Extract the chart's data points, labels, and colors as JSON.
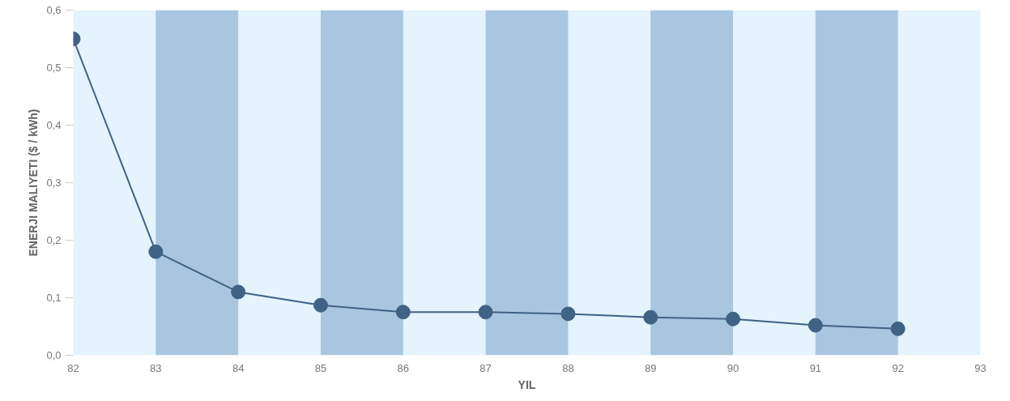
{
  "chart_data": {
    "type": "line",
    "xlabel": "YIL",
    "ylabel": "ENERJI MALIYETI ($ / kWh)",
    "x": [
      82,
      83,
      84,
      85,
      86,
      87,
      88,
      89,
      90,
      91,
      92
    ],
    "series": [
      {
        "color": "#3f6285",
        "values": [
          0.55,
          0.18,
          0.11,
          0.087,
          0.075,
          0.075,
          0.072,
          0.066,
          0.063,
          0.052,
          0.046
        ]
      }
    ],
    "xlim": [
      82,
      93
    ],
    "ylim": [
      0,
      0.6
    ],
    "xticks": [
      82,
      83,
      84,
      85,
      86,
      87,
      88,
      89,
      90,
      91,
      92,
      93
    ],
    "yticks": [
      {
        "value": 0,
        "label": "0,0"
      },
      {
        "value": 0.1,
        "label": "0,1"
      },
      {
        "value": 0.2,
        "label": "0,2"
      },
      {
        "value": 0.3,
        "label": "0,3"
      },
      {
        "value": 0.4,
        "label": "0,4"
      },
      {
        "value": 0.5,
        "label": "0,5"
      },
      {
        "value": 0.6,
        "label": "0,6"
      }
    ],
    "bands": [
      {
        "axis": "x",
        "from": 82,
        "to": 93,
        "color": "#e4f3fc"
      },
      {
        "axis": "x",
        "from": 83,
        "to": 84,
        "color": "#a9c6e0"
      },
      {
        "axis": "x",
        "from": 85,
        "to": 86,
        "color": "#a9c6e0"
      },
      {
        "axis": "x",
        "from": 87,
        "to": 88,
        "color": "#a9c6e0"
      },
      {
        "axis": "x",
        "from": 89,
        "to": 90,
        "color": "#a9c6e0"
      },
      {
        "axis": "x",
        "from": 91,
        "to": 92,
        "color": "#a9c6e0"
      }
    ],
    "marker": "circle",
    "line_style": "solid"
  }
}
